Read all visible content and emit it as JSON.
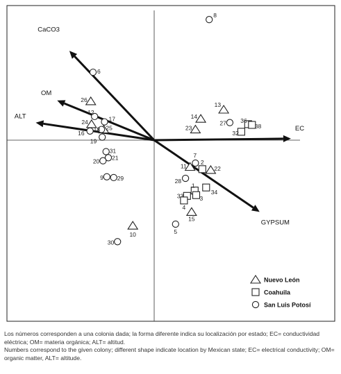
{
  "chart_data": {
    "type": "scatter",
    "title": "",
    "xlabel": "",
    "ylabel": "",
    "grid": false,
    "legend_position": "bottom-right",
    "xlim": [
      -2.1,
      2.1
    ],
    "ylim": [
      -1.9,
      1.9
    ],
    "vectors": [
      {
        "label": "CaCO3",
        "x": -1.11,
        "y": 1.17
      },
      {
        "label": "OM",
        "x": -1.27,
        "y": 0.52
      },
      {
        "label": "ALT",
        "x": -1.55,
        "y": 0.23
      },
      {
        "label": "EC",
        "x": 1.79,
        "y": 0.02
      },
      {
        "label": "GYPSUM",
        "x": 1.38,
        "y": -0.94
      }
    ],
    "legend": [
      {
        "label": "Nuevo León",
        "shape": "triangle"
      },
      {
        "label": "Coahuila",
        "shape": "square"
      },
      {
        "label": "San Luis Potosí",
        "shape": "circle"
      }
    ],
    "series": [
      {
        "label": "Nuevo León",
        "shape": "triangle",
        "points": [
          {
            "id": "26",
            "x": -0.83,
            "y": 0.51
          },
          {
            "id": "24",
            "x": -0.82,
            "y": 0.21
          },
          {
            "id": "25",
            "x": -0.66,
            "y": 0.14
          },
          {
            "id": "13",
            "x": 0.91,
            "y": 0.4
          },
          {
            "id": "14",
            "x": 0.61,
            "y": 0.28
          },
          {
            "id": "23",
            "x": 0.54,
            "y": 0.14
          },
          {
            "id": "11",
            "x": 0.47,
            "y": -0.35
          },
          {
            "id": "22",
            "x": 0.74,
            "y": -0.39
          },
          {
            "id": "15",
            "x": 0.49,
            "y": -0.94
          },
          {
            "id": "10",
            "x": -0.28,
            "y": -1.12
          }
        ]
      },
      {
        "label": "Coahuila",
        "shape": "square",
        "points": [
          {
            "id": "36",
            "x": 1.23,
            "y": 0.21
          },
          {
            "id": "38",
            "x": 1.28,
            "y": 0.2
          },
          {
            "id": "32",
            "x": 1.14,
            "y": 0.11
          },
          {
            "id": "2",
            "x": 0.63,
            "y": -0.38
          },
          {
            "id": "34",
            "x": 0.68,
            "y": -0.62
          },
          {
            "id": "1",
            "x": 0.53,
            "y": -0.66
          },
          {
            "id": "3",
            "x": 0.55,
            "y": -0.72
          },
          {
            "id": "33",
            "x": 0.43,
            "y": -0.73
          },
          {
            "id": "4",
            "x": 0.39,
            "y": -0.79
          }
        ]
      },
      {
        "label": "San Luis Potosí",
        "shape": "circle",
        "points": [
          {
            "id": "8",
            "x": 0.72,
            "y": 1.58
          },
          {
            "id": "6",
            "x": -0.8,
            "y": 0.89
          },
          {
            "id": "12",
            "x": -0.78,
            "y": 0.31
          },
          {
            "id": "17",
            "x": -0.65,
            "y": 0.24
          },
          {
            "id": "18",
            "x": -0.69,
            "y": 0.14
          },
          {
            "id": "16",
            "x": -0.84,
            "y": 0.12
          },
          {
            "id": "27",
            "x": 0.99,
            "y": 0.23
          },
          {
            "id": "19",
            "x": -0.68,
            "y": 0.04
          },
          {
            "id": "31",
            "x": -0.63,
            "y": -0.15
          },
          {
            "id": "21",
            "x": -0.6,
            "y": -0.23
          },
          {
            "id": "20",
            "x": -0.67,
            "y": -0.27
          },
          {
            "id": "9",
            "x": -0.62,
            "y": -0.48
          },
          {
            "id": "29",
            "x": -0.53,
            "y": -0.49
          },
          {
            "id": "7",
            "x": 0.54,
            "y": -0.3
          },
          {
            "id": "28",
            "x": 0.41,
            "y": -0.5
          },
          {
            "id": "5",
            "x": 0.28,
            "y": -1.1
          },
          {
            "id": "30",
            "x": -0.48,
            "y": -1.33
          }
        ]
      }
    ]
  },
  "caption": {
    "es": "Los números corresponden a una colonia dada; la forma diferente indica su localización por estado; EC= conductividad eléctrica; OM= materia orgánica; ALT= altitud.",
    "en": "Numbers correspond to the given colony; different shape indicate location by Mexican state; EC= electrical conductivity; OM= organic matter, ALT= altitude."
  }
}
